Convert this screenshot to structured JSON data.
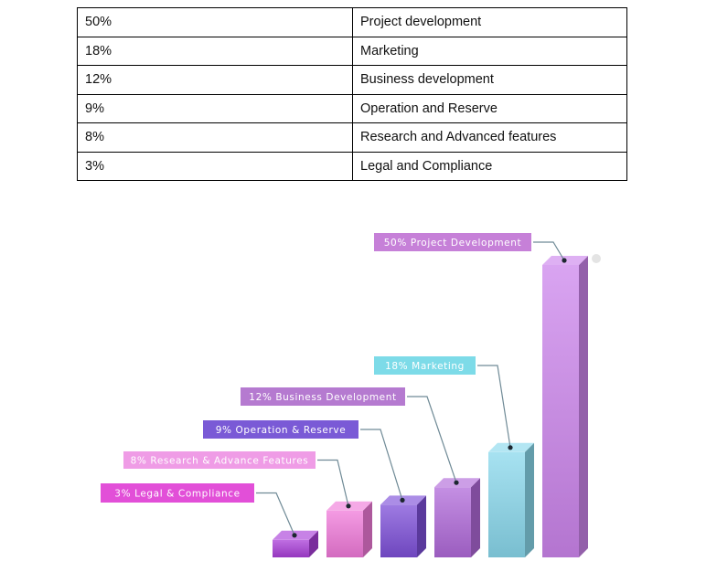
{
  "allocation_table": {
    "rows": [
      {
        "percent": "50%",
        "category": "Project development"
      },
      {
        "percent": "18%",
        "category": "Marketing"
      },
      {
        "percent": "12%",
        "category": "Business development"
      },
      {
        "percent": "9%",
        "category": "Operation and Reserve"
      },
      {
        "percent": "8%",
        "category": "Research and Advanced features"
      },
      {
        "percent": "3%",
        "category": "Legal and Compliance"
      }
    ]
  },
  "chart_data": {
    "type": "bar",
    "style": "3d",
    "grid": false,
    "legend": "none",
    "categories": [
      "3% Legal & Compliance",
      "8% Research & Advance Features",
      "9% Operation & Reserve",
      "12% Business Development",
      "18% Marketing",
      "50% Project Development"
    ],
    "values": [
      3,
      8,
      9,
      12,
      18,
      50
    ],
    "colors": {
      "bars": [
        "#a93fd8",
        "#f07ad9",
        "#7d4fd8",
        "#b06ad9",
        "#8ad8ec",
        "#cc85ec"
      ],
      "labels": [
        "#e24fd8",
        "#ef9ce6",
        "#7a5ad6",
        "#b57ad0",
        "#7ddbe8",
        "#c680d8"
      ]
    }
  }
}
